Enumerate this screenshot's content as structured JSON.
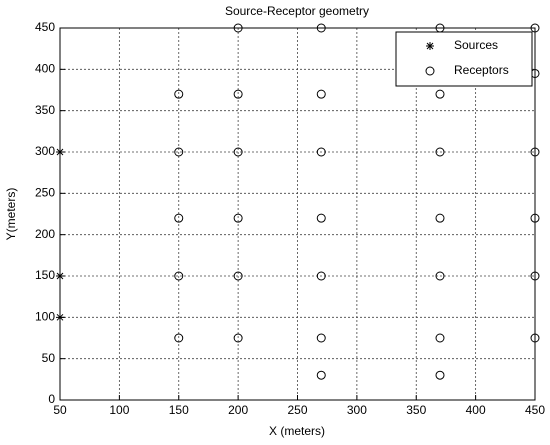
{
  "chart_data": {
    "type": "scatter",
    "title": "Source-Receptor geometry",
    "x_label": "X (meters)",
    "y_label": "Y(meters)",
    "xlim": [
      50,
      450
    ],
    "ylim": [
      0,
      450
    ],
    "xticks": [
      50,
      100,
      150,
      200,
      250,
      300,
      350,
      400,
      450
    ],
    "yticks": [
      0,
      50,
      100,
      150,
      200,
      250,
      300,
      350,
      400,
      450
    ],
    "grid": true,
    "legend": "upper right",
    "series": [
      {
        "name": "Sources",
        "marker": "*",
        "color": "#000000",
        "x": [
          50,
          50,
          50
        ],
        "y": [
          300,
          150,
          100
        ]
      },
      {
        "name": "Receptors",
        "marker": "o",
        "color": "#000000",
        "x": [
          200,
          270,
          370,
          450,
          450,
          150,
          200,
          270,
          370,
          150,
          200,
          270,
          370,
          450,
          150,
          200,
          270,
          370,
          450,
          150,
          200,
          270,
          370,
          450,
          150,
          200,
          270,
          370,
          450,
          270,
          370
        ],
        "y": [
          450,
          450,
          450,
          450,
          395,
          370,
          370,
          370,
          370,
          300,
          300,
          300,
          300,
          300,
          220,
          220,
          220,
          220,
          220,
          150,
          150,
          150,
          150,
          150,
          75,
          75,
          75,
          75,
          75,
          30,
          30
        ]
      }
    ]
  }
}
